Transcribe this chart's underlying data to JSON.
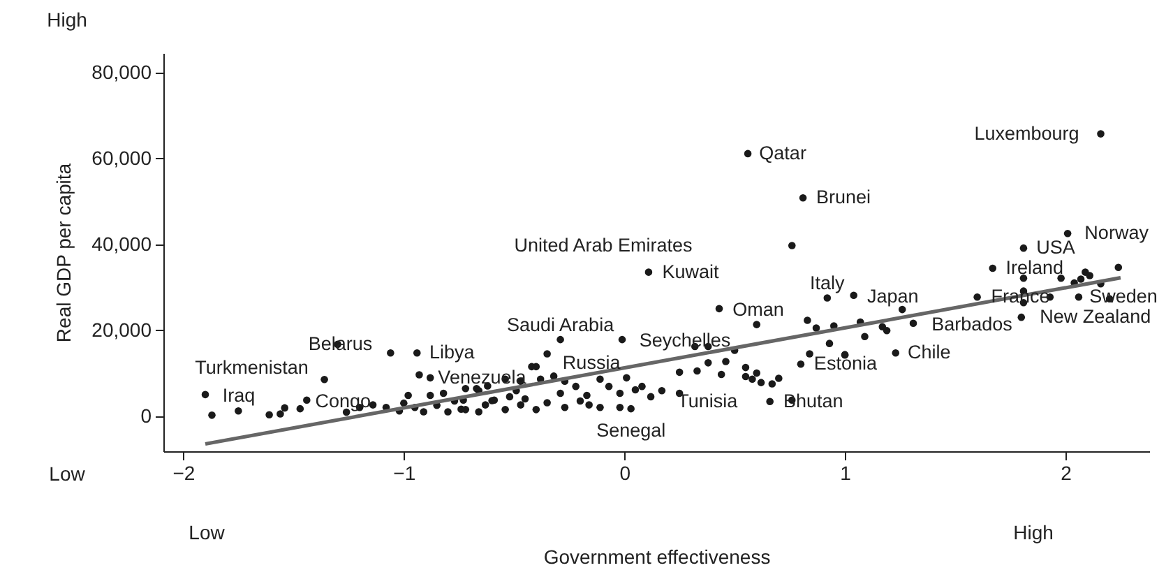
{
  "chart_data": {
    "type": "scatter",
    "xlabel": "Government effectiveness",
    "ylabel": "Real GDP per capita",
    "xlim": [
      -2.09,
      2.38
    ],
    "xticks": [
      -2,
      -1,
      0,
      1,
      2
    ],
    "ylim": [
      -8200,
      84500
    ],
    "yticks": [
      0,
      {
        "value": 20000,
        "label": "20,000"
      },
      {
        "value": 40000,
        "label": "40,000"
      },
      {
        "value": 60000,
        "label": "60,000"
      },
      {
        "value": 80000,
        "label": "80,000"
      }
    ],
    "series": [
      {
        "type": "scatter",
        "marker": "circle",
        "color": "#1a1a1a",
        "x": [
          -1.9,
          -1.87,
          -1.75,
          -1.61,
          -1.56,
          -1.54,
          -1.47,
          -1.44,
          -1.36,
          -1.3,
          -1.06,
          -0.94,
          -0.93,
          -0.88,
          -1.26,
          -1.2,
          -1.14,
          -1.08,
          -0.98,
          -0.88,
          -0.82,
          -0.72,
          -0.67,
          -0.91,
          -0.8,
          -0.74,
          -0.63,
          -0.6,
          -1.0,
          -0.85,
          -0.77,
          -0.95,
          -1.02,
          0.11,
          0.43,
          0.6,
          0.92,
          1.04,
          0.83,
          0.87,
          0.95,
          1.07,
          1.09,
          0.84,
          0.93,
          1.0,
          0.8,
          -0.29,
          -0.01,
          -0.35,
          0.32,
          0.38,
          0.5,
          0.38,
          0.46,
          0.25,
          0.33,
          0.44,
          0.55,
          0.58,
          0.6,
          0.67,
          0.7,
          0.66,
          0.76,
          0.25,
          0.12,
          0.17,
          0.08,
          0.05,
          0.01,
          -0.11,
          -0.07,
          -0.02,
          -0.11,
          -0.02,
          0.03,
          -0.32,
          -0.42,
          -0.4,
          -0.29,
          -0.22,
          -0.17,
          -0.16,
          -0.27,
          -0.35,
          -0.4,
          -0.47,
          -0.54,
          -0.66,
          -0.72,
          -0.59,
          -0.49,
          -0.38,
          -0.27,
          -0.47,
          -0.54,
          -0.66,
          -0.73,
          -0.45,
          -0.52,
          -0.62,
          -0.2,
          0.55,
          0.62,
          0.56,
          0.81,
          0.76,
          2.16,
          2.01,
          1.81,
          1.67,
          2.24,
          1.81,
          1.98,
          2.07,
          2.09,
          2.16,
          1.6,
          1.81,
          1.81,
          1.93,
          2.06,
          2.2,
          1.8,
          1.31,
          1.26,
          1.17,
          1.19,
          1.0,
          1.23,
          2.04,
          2.11
        ],
        "values": [
          5000,
          200,
          1200,
          300,
          500,
          1900,
          1700,
          3700,
          8500,
          16700,
          14700,
          14700,
          9600,
          8900,
          900,
          2000,
          2600,
          2000,
          4800,
          4800,
          5300,
          6400,
          6400,
          1000,
          1000,
          1600,
          2600,
          3600,
          3000,
          2500,
          3500,
          2000,
          1200,
          33500,
          25000,
          21300,
          27500,
          28100,
          22300,
          20500,
          21000,
          21900,
          18500,
          14500,
          16900,
          14300,
          12100,
          17800,
          17800,
          14500,
          16200,
          16200,
          15300,
          12400,
          12700,
          10200,
          10500,
          9700,
          11300,
          8600,
          10000,
          7500,
          8800,
          3400,
          3700,
          5300,
          4500,
          5900,
          6900,
          6100,
          8900,
          8600,
          6900,
          5300,
          2000,
          2000,
          1700,
          9300,
          11500,
          11500,
          5300,
          6900,
          4800,
          2600,
          2000,
          3100,
          1500,
          2600,
          1500,
          1000,
          1500,
          3700,
          5900,
          8600,
          8100,
          8100,
          8600,
          5900,
          3700,
          4000,
          4500,
          7000,
          3500,
          9200,
          7800,
          61100,
          50800,
          39700,
          65700,
          42500,
          39100,
          34400,
          34600,
          32100,
          32100,
          31900,
          33500,
          30800,
          27700,
          29100,
          26400,
          27700,
          27700,
          27300,
          23000,
          21600,
          24800,
          20800,
          19900,
          14200,
          14700,
          31000,
          32700
        ]
      },
      {
        "type": "line",
        "color": "#666666",
        "x": [
          -1.9,
          2.25
        ],
        "values": [
          -6500,
          32200
        ]
      }
    ],
    "annotations": [
      {
        "text": "Turkmenistan",
        "x": -1.36,
        "y": 8500
      },
      {
        "text": "Iraq",
        "x": -1.9,
        "y": 5000
      },
      {
        "text": "Belarus",
        "x": -1.3,
        "y": 16700
      },
      {
        "text": "Libya",
        "x": -0.94,
        "y": 14700
      },
      {
        "text": "Venezuela",
        "x": -0.93,
        "y": 9600
      },
      {
        "text": "Congo",
        "x": -1.44,
        "y": 3700
      },
      {
        "text": "Saudi Arabia",
        "x": -0.29,
        "y": 17800
      },
      {
        "text": "Russia",
        "x": -0.32,
        "y": 9300
      },
      {
        "text": "Seychelles",
        "x": -0.01,
        "y": 17800
      },
      {
        "text": "Senegal",
        "x": 0.03,
        "y": 1700
      },
      {
        "text": "Tunisia",
        "x": 0.25,
        "y": 5300
      },
      {
        "text": "Bhutan",
        "x": 0.66,
        "y": 3400
      },
      {
        "text": "Estonia",
        "x": 0.8,
        "y": 12100
      },
      {
        "text": "Kuwait",
        "x": 0.11,
        "y": 33500
      },
      {
        "text": "Oman",
        "x": 0.43,
        "y": 25000
      },
      {
        "text": "Italy",
        "x": 0.92,
        "y": 27500
      },
      {
        "text": "Japan",
        "x": 1.04,
        "y": 28100
      },
      {
        "text": "Barbados",
        "x": 1.31,
        "y": 21600
      },
      {
        "text": "Chile",
        "x": 1.23,
        "y": 14700
      },
      {
        "text": "France",
        "x": 1.6,
        "y": 27700
      },
      {
        "text": "New Zealand",
        "x": 1.8,
        "y": 23000
      },
      {
        "text": "Sweden",
        "x": 2.06,
        "y": 27700
      },
      {
        "text": "Ireland",
        "x": 1.67,
        "y": 34400
      },
      {
        "text": "USA",
        "x": 1.81,
        "y": 39100
      },
      {
        "text": "Norway",
        "x": 2.01,
        "y": 42500
      },
      {
        "text": "Luxembourg",
        "x": 2.16,
        "y": 65700
      },
      {
        "text": "Qatar",
        "x": 0.56,
        "y": 61100
      },
      {
        "text": "Brunei",
        "x": 0.81,
        "y": 50800
      },
      "United Arab Emirates",
      "High",
      "Low",
      "Low",
      "High"
    ]
  }
}
